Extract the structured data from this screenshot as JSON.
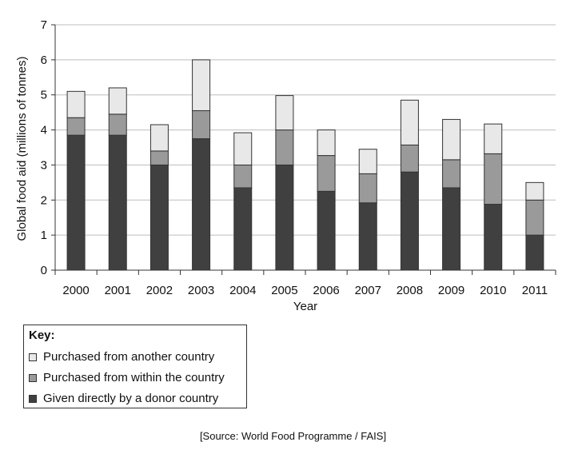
{
  "chart_data": {
    "type": "bar",
    "stacked": true,
    "xlabel": "Year",
    "ylabel": "Global food aid (millions of tonnes)",
    "ylim": [
      0,
      7
    ],
    "yticks": [
      0,
      1,
      2,
      3,
      4,
      5,
      6,
      7
    ],
    "grid": true,
    "categories": [
      "2000",
      "2001",
      "2002",
      "2003",
      "2004",
      "2005",
      "2006",
      "2007",
      "2008",
      "2009",
      "2010",
      "2011"
    ],
    "series": [
      {
        "name": "Given directly by a donor country",
        "color": "#404040",
        "values": [
          3.85,
          3.85,
          3.0,
          3.75,
          2.35,
          3.0,
          2.25,
          1.92,
          2.8,
          2.35,
          1.88,
          1.0
        ]
      },
      {
        "name": "Purchased from within the country",
        "color": "#9a9a9a",
        "values": [
          0.5,
          0.6,
          0.4,
          0.8,
          0.65,
          1.0,
          1.02,
          0.83,
          0.77,
          0.8,
          1.44,
          1.0
        ]
      },
      {
        "name": "Purchased from another country",
        "color": "#e8e8e8",
        "values": [
          0.75,
          0.75,
          0.75,
          1.45,
          0.92,
          0.98,
          0.73,
          0.7,
          1.28,
          1.15,
          0.85,
          0.5
        ]
      }
    ]
  },
  "legend": {
    "title": "Key:",
    "items": [
      {
        "label": "Purchased from another country",
        "color": "#e8e8e8"
      },
      {
        "label": "Purchased from within the country",
        "color": "#9a9a9a"
      },
      {
        "label": "Given directly by a donor country",
        "color": "#404040"
      }
    ]
  },
  "source": "[Source: World Food Programme / FAIS]"
}
